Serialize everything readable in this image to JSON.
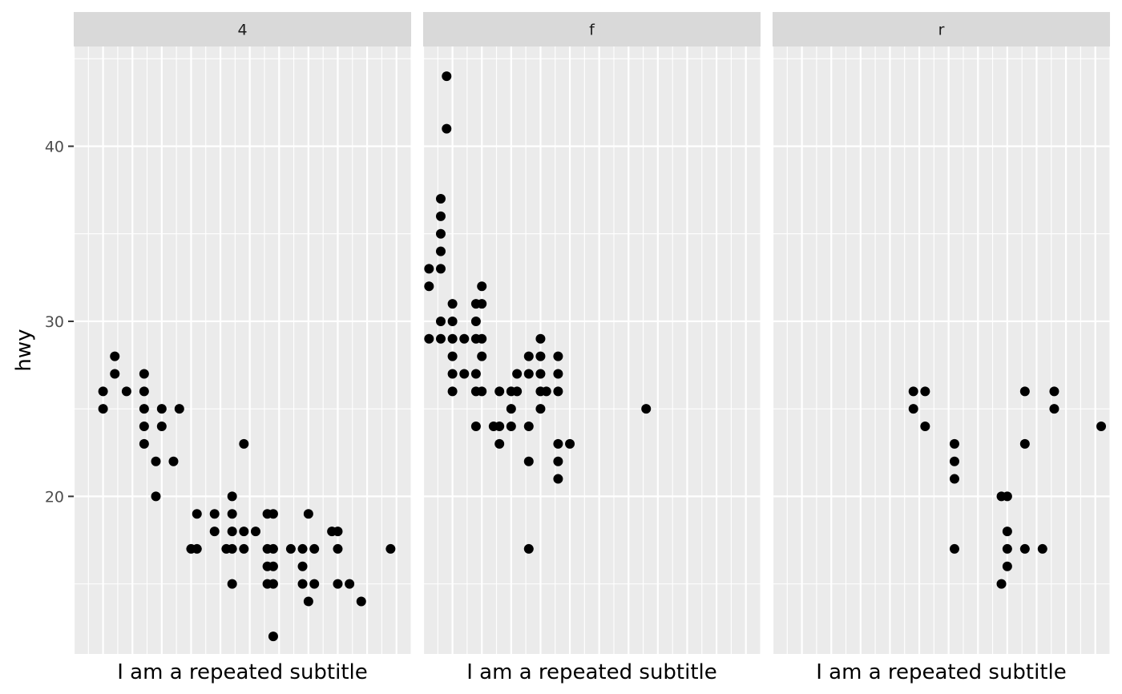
{
  "chart_data": {
    "type": "scatter",
    "facet_variable_values": [
      "4",
      "f",
      "r"
    ],
    "ylabel": "hwy",
    "xlabel_repeated": "I am a repeated subtitle",
    "ylim": [
      11,
      45.7
    ],
    "y_ticks": [
      20,
      30,
      40
    ],
    "x_ticks_shown": false,
    "grid": true,
    "point_color": "#000000",
    "panel_background": "#ebebeb",
    "strip_background": "#d9d9d9",
    "panels": [
      {
        "label": "4",
        "subtitle": "I am a repeated subtitle",
        "xlim": [
          0,
          11.5
        ],
        "points": [
          [
            1,
            26
          ],
          [
            1,
            25
          ],
          [
            1.4,
            28
          ],
          [
            1.4,
            27
          ],
          [
            1.8,
            26
          ],
          [
            2.4,
            27
          ],
          [
            2.4,
            26
          ],
          [
            2.4,
            25
          ],
          [
            2.4,
            24
          ],
          [
            2.4,
            23
          ],
          [
            2.8,
            22
          ],
          [
            2.8,
            20
          ],
          [
            3,
            25
          ],
          [
            3,
            24
          ],
          [
            3.4,
            22
          ],
          [
            3.6,
            25
          ],
          [
            4,
            17
          ],
          [
            4.2,
            19
          ],
          [
            4.2,
            17
          ],
          [
            4.8,
            19
          ],
          [
            4.8,
            18
          ],
          [
            5.4,
            20
          ],
          [
            5.4,
            19
          ],
          [
            5.4,
            18
          ],
          [
            5.4,
            17
          ],
          [
            5.4,
            15
          ],
          [
            5.2,
            17
          ],
          [
            5.8,
            23
          ],
          [
            5.8,
            18
          ],
          [
            5.8,
            17
          ],
          [
            6.2,
            18
          ],
          [
            6.6,
            19
          ],
          [
            6.6,
            17
          ],
          [
            6.6,
            16
          ],
          [
            6.6,
            15
          ],
          [
            6.8,
            19
          ],
          [
            6.8,
            17
          ],
          [
            6.8,
            16
          ],
          [
            6.8,
            15
          ],
          [
            6.8,
            12
          ],
          [
            7.4,
            17
          ],
          [
            7.8,
            17
          ],
          [
            7.8,
            16
          ],
          [
            7.8,
            15
          ],
          [
            8,
            19
          ],
          [
            8,
            14
          ],
          [
            8.2,
            17
          ],
          [
            8.2,
            15
          ],
          [
            8.8,
            18
          ],
          [
            9,
            18
          ],
          [
            9,
            17
          ],
          [
            9,
            15
          ],
          [
            9.4,
            15
          ],
          [
            9.8,
            14
          ],
          [
            10.8,
            17
          ]
        ]
      },
      {
        "label": "f",
        "subtitle": "I am a repeated subtitle",
        "xlim": [
          0,
          11.5
        ],
        "points": [
          [
            0.2,
            33
          ],
          [
            0.2,
            32
          ],
          [
            0.2,
            29
          ],
          [
            0.6,
            37
          ],
          [
            0.6,
            36
          ],
          [
            0.6,
            35
          ],
          [
            0.6,
            34
          ],
          [
            0.6,
            33
          ],
          [
            0.6,
            30
          ],
          [
            0.6,
            29
          ],
          [
            0.8,
            44
          ],
          [
            0.8,
            41
          ],
          [
            1,
            31
          ],
          [
            1,
            30
          ],
          [
            1,
            29
          ],
          [
            1,
            28
          ],
          [
            1,
            27
          ],
          [
            1,
            26
          ],
          [
            1.4,
            29
          ],
          [
            1.4,
            27
          ],
          [
            1.8,
            31
          ],
          [
            1.8,
            30
          ],
          [
            1.8,
            29
          ],
          [
            1.8,
            27
          ],
          [
            1.8,
            26
          ],
          [
            1.8,
            24
          ],
          [
            2,
            32
          ],
          [
            2,
            31
          ],
          [
            2,
            29
          ],
          [
            2,
            28
          ],
          [
            2,
            26
          ],
          [
            2.4,
            24
          ],
          [
            2.6,
            26
          ],
          [
            2.6,
            24
          ],
          [
            2.6,
            23
          ],
          [
            3,
            26
          ],
          [
            3,
            25
          ],
          [
            3,
            24
          ],
          [
            3.2,
            27
          ],
          [
            3.2,
            26
          ],
          [
            3.6,
            28
          ],
          [
            3.6,
            27
          ],
          [
            3.6,
            24
          ],
          [
            3.6,
            22
          ],
          [
            3.6,
            17
          ],
          [
            4,
            29
          ],
          [
            4,
            28
          ],
          [
            4,
            27
          ],
          [
            4,
            26
          ],
          [
            4,
            25
          ],
          [
            4.2,
            26
          ],
          [
            4.6,
            28
          ],
          [
            4.6,
            27
          ],
          [
            4.6,
            26
          ],
          [
            4.6,
            23
          ],
          [
            4.6,
            22
          ],
          [
            4.6,
            21
          ],
          [
            5,
            23
          ],
          [
            7.6,
            25
          ]
        ]
      },
      {
        "label": "r",
        "subtitle": "I am a repeated subtitle",
        "xlim": [
          0,
          11.5
        ],
        "points": [
          [
            4.8,
            26
          ],
          [
            4.8,
            25
          ],
          [
            5.2,
            26
          ],
          [
            5.2,
            24
          ],
          [
            6.2,
            23
          ],
          [
            6.2,
            22
          ],
          [
            6.2,
            21
          ],
          [
            6.2,
            17
          ],
          [
            7.8,
            20
          ],
          [
            7.8,
            15
          ],
          [
            8,
            20
          ],
          [
            8,
            18
          ],
          [
            8,
            17
          ],
          [
            8,
            16
          ],
          [
            8.6,
            26
          ],
          [
            8.6,
            23
          ],
          [
            8.6,
            17
          ],
          [
            9.2,
            17
          ],
          [
            9.6,
            26
          ],
          [
            9.6,
            25
          ],
          [
            11.2,
            24
          ]
        ]
      }
    ]
  }
}
